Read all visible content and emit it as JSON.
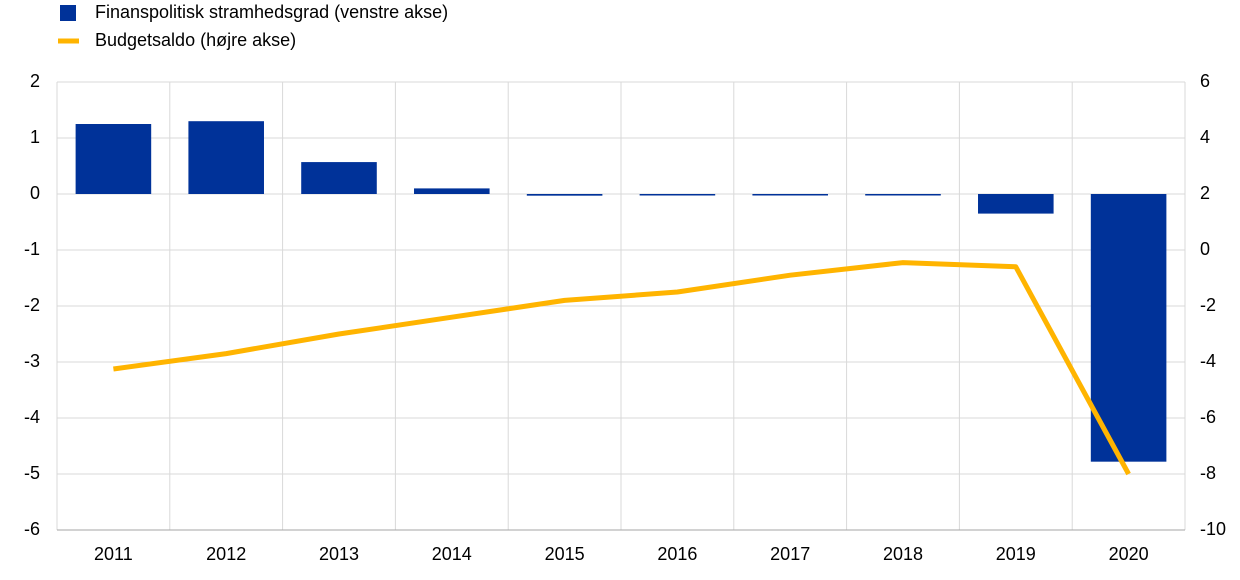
{
  "chart_data": {
    "type": "bar",
    "categories": [
      "2011",
      "2012",
      "2013",
      "2014",
      "2015",
      "2016",
      "2017",
      "2018",
      "2019",
      "2020"
    ],
    "series": [
      {
        "name": "Finanspolitisk stramhedsgrad (venstre akse)",
        "type": "bar",
        "color": "#003299",
        "values": [
          1.25,
          1.3,
          0.57,
          0.1,
          -0.03,
          0,
          -0.02,
          0,
          -0.35,
          -4.78
        ]
      },
      {
        "name": "Budgetsaldo (højre akse)",
        "type": "line",
        "axis": "y2",
        "color": "#ffb400",
        "values": [
          -4.25,
          -3.7,
          -3.0,
          -2.4,
          -1.8,
          -1.5,
          -0.9,
          -0.45,
          -0.6,
          -8.0
        ]
      }
    ],
    "ylim": [
      -6,
      2
    ],
    "yticks": [
      -6,
      -5,
      -4,
      -3,
      -2,
      -1,
      0,
      1,
      2
    ],
    "y2lim": [
      -10,
      6
    ],
    "y2ticks": [
      -10,
      -8,
      -6,
      -4,
      -2,
      0,
      2,
      4,
      6
    ],
    "grid": true,
    "legend": "top-left"
  }
}
